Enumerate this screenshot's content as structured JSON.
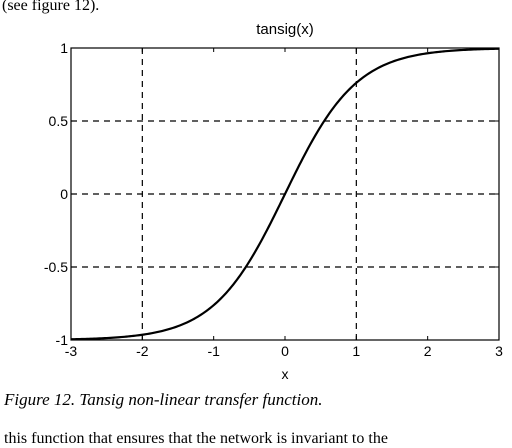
{
  "document": {
    "top_text": "(see figure 12).",
    "caption": "Figure 12. Tansig non-linear transfer function.",
    "bottom_text": "this function that ensures that the network is invariant to the"
  },
  "chart_data": {
    "type": "line",
    "title": "tansig(x)",
    "xlabel": "x",
    "ylabel": "",
    "xlim": [
      -3,
      3
    ],
    "ylim": [
      -1,
      1
    ],
    "x_ticks": [
      -3,
      -2,
      -1,
      0,
      1,
      2,
      3
    ],
    "x_tick_labels": [
      "-3",
      "-2",
      "-1",
      "0",
      "1",
      "2",
      "3"
    ],
    "y_ticks": [
      -1,
      -0.5,
      0,
      0.5,
      1
    ],
    "y_tick_labels": [
      "-1",
      "-0.5",
      "0",
      "0.5",
      "1"
    ],
    "grid_vertical": [
      -2,
      1
    ],
    "grid_horizontal": [
      -0.5,
      0,
      0.5
    ],
    "series": [
      {
        "function": "tanh",
        "x": [
          -3,
          -2.5,
          -2,
          -1.5,
          -1,
          -0.5,
          0,
          0.5,
          1,
          1.5,
          2,
          2.5,
          3
        ],
        "y": [
          -0.995,
          -0.987,
          -0.964,
          -0.905,
          -0.762,
          -0.462,
          0,
          0.462,
          0.762,
          0.905,
          0.964,
          0.987,
          0.995
        ]
      }
    ],
    "colors": {
      "line": "#000000",
      "grid": "#000000",
      "axes": "#000000"
    }
  }
}
